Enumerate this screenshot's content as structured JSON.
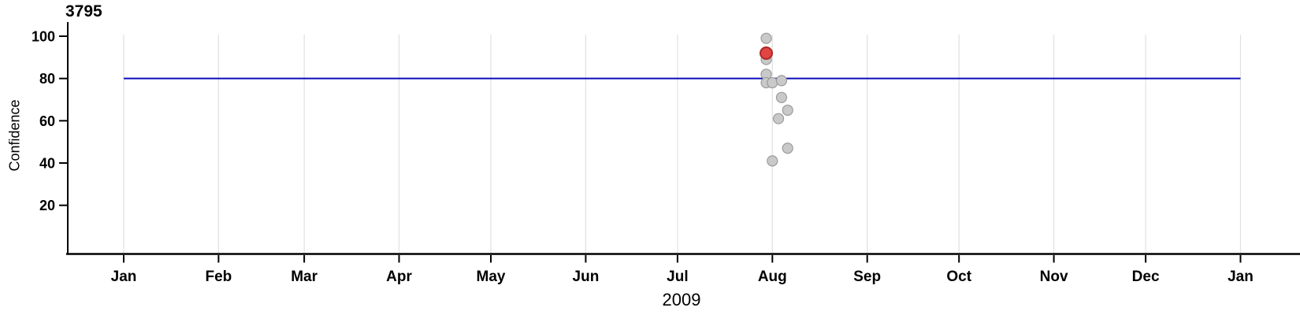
{
  "figure": {
    "title": "3795",
    "y_axis_label": "Confidence",
    "x_axis_label": "2009"
  },
  "colors": {
    "axis": "#000000",
    "gridline": "#e0e0e0",
    "threshold_line": "#0b0bbb",
    "point_fill": "#c9c9c9",
    "point_stroke": "#9b9b9b",
    "highlight_fill": "#e04543",
    "highlight_stroke": "#ad2a28",
    "text": "#000000"
  },
  "chart_data": {
    "type": "scatter",
    "title": "3795",
    "xlabel": "2009",
    "ylabel": "Confidence",
    "grid": "vertical-only",
    "legend": "none",
    "x_axis": {
      "kind": "time",
      "start": "2009-01-01",
      "end": "2010-01-01",
      "ticks": [
        {
          "date": "2009-01-01",
          "label": "Jan"
        },
        {
          "date": "2009-02-01",
          "label": "Feb"
        },
        {
          "date": "2009-03-01",
          "label": "Mar"
        },
        {
          "date": "2009-04-01",
          "label": "Apr"
        },
        {
          "date": "2009-05-01",
          "label": "May"
        },
        {
          "date": "2009-06-01",
          "label": "Jun"
        },
        {
          "date": "2009-07-01",
          "label": "Jul"
        },
        {
          "date": "2009-08-01",
          "label": "Aug"
        },
        {
          "date": "2009-09-01",
          "label": "Sep"
        },
        {
          "date": "2009-10-01",
          "label": "Oct"
        },
        {
          "date": "2009-11-01",
          "label": "Nov"
        },
        {
          "date": "2009-12-01",
          "label": "Dec"
        },
        {
          "date": "2010-01-01",
          "label": "Jan"
        }
      ]
    },
    "y_axis": {
      "label": "Confidence",
      "ticks": [
        20,
        40,
        60,
        80,
        100
      ],
      "range": [
        0,
        107
      ]
    },
    "threshold_line": {
      "value": 80,
      "span": [
        "2009-01-01",
        "2010-01-01"
      ]
    },
    "points": [
      {
        "date": "2009-07-30",
        "confidence": 99,
        "highlighted": false
      },
      {
        "date": "2009-07-30",
        "confidence": 89,
        "highlighted": false
      },
      {
        "date": "2009-07-30",
        "confidence": 82,
        "highlighted": false
      },
      {
        "date": "2009-07-30",
        "confidence": 78,
        "highlighted": false
      },
      {
        "date": "2009-08-01",
        "confidence": 78,
        "highlighted": false
      },
      {
        "date": "2009-08-04",
        "confidence": 79,
        "highlighted": false
      },
      {
        "date": "2009-08-04",
        "confidence": 71,
        "highlighted": false
      },
      {
        "date": "2009-08-06",
        "confidence": 65,
        "highlighted": false
      },
      {
        "date": "2009-08-03",
        "confidence": 61,
        "highlighted": false
      },
      {
        "date": "2009-08-06",
        "confidence": 47,
        "highlighted": false
      },
      {
        "date": "2009-08-01",
        "confidence": 41,
        "highlighted": false
      },
      {
        "date": "2009-07-30",
        "confidence": 92,
        "highlighted": true
      }
    ]
  }
}
